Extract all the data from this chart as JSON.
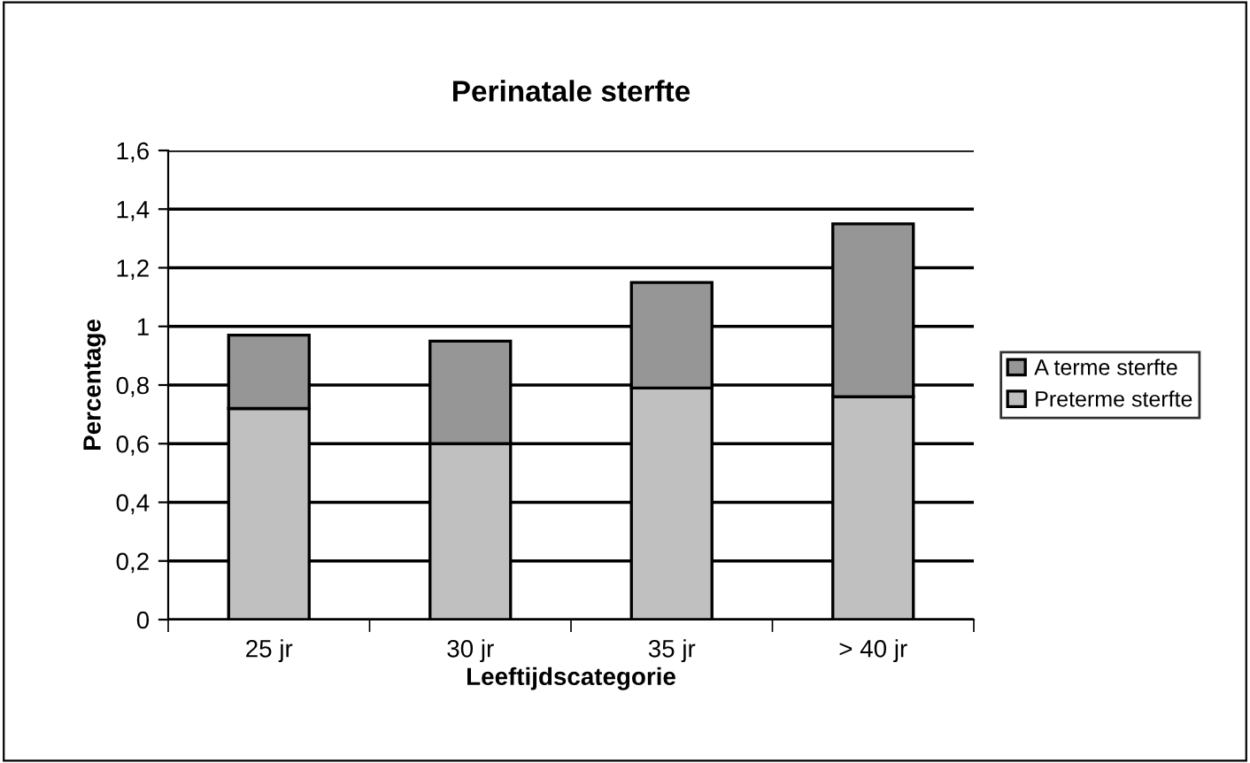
{
  "chart_data": {
    "type": "bar",
    "stacked": true,
    "title": "Perinatale sterfte",
    "xlabel": "Leeftijdscategorie",
    "ylabel": "Percentage",
    "categories": [
      "25 jr",
      "30 jr",
      "35 jr",
      "> 40 jr"
    ],
    "series": [
      {
        "name": "Preterme sterfte",
        "color": "#c0c0c0",
        "values": [
          0.72,
          0.6,
          0.79,
          0.76
        ]
      },
      {
        "name": "A terme sterfte",
        "color": "#969696",
        "values": [
          0.25,
          0.35,
          0.36,
          0.59
        ]
      }
    ],
    "ylim": [
      0,
      1.6
    ],
    "yticks": [
      {
        "value": 0,
        "label": "0"
      },
      {
        "value": 0.2,
        "label": "0,2"
      },
      {
        "value": 0.4,
        "label": "0,4"
      },
      {
        "value": 0.6,
        "label": "0,6"
      },
      {
        "value": 0.8,
        "label": "0,8"
      },
      {
        "value": 1,
        "label": "1"
      },
      {
        "value": 1.2,
        "label": "1,2"
      },
      {
        "value": 1.4,
        "label": "1,4"
      },
      {
        "value": 1.6,
        "label": "1,6"
      }
    ],
    "grid": "y",
    "legend": "right"
  }
}
